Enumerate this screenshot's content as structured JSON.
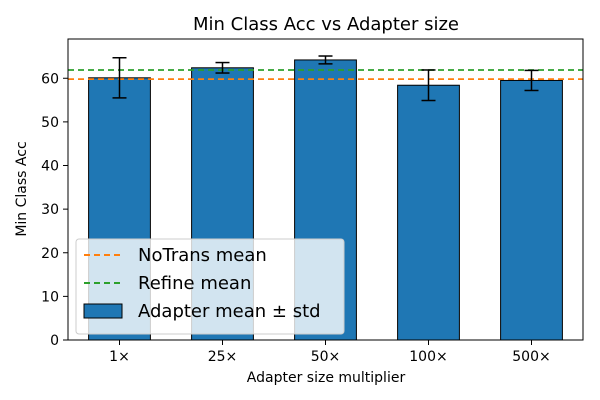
{
  "chart_data": {
    "type": "bar",
    "title": "Min Class Acc vs Adapter size",
    "xlabel": "Adapter size multiplier",
    "ylabel": "Min Class Acc",
    "categories": [
      "1×",
      "25×",
      "50×",
      "100×",
      "500×"
    ],
    "values": [
      60.1,
      62.4,
      64.2,
      58.4,
      59.5
    ],
    "errors": [
      4.6,
      1.2,
      0.9,
      3.5,
      2.3
    ],
    "ylim": [
      0,
      69
    ],
    "yticks": [
      0,
      10,
      20,
      30,
      40,
      50,
      60
    ],
    "hlines": [
      {
        "name": "NoTrans mean",
        "value": 59.8,
        "color": "#ff7f0e",
        "style": "dashed"
      },
      {
        "name": "Refine mean",
        "value": 61.9,
        "color": "#2ca02c",
        "style": "dashed"
      }
    ],
    "bar_series_name": "Adapter mean ± std",
    "bar_color": "#1f77b4",
    "legend_position": "lower-left",
    "grid": false
  }
}
